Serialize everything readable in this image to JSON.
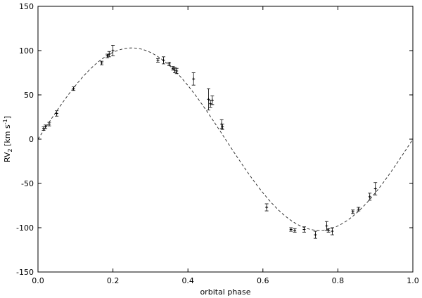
{
  "chart_data": {
    "type": "scatter",
    "xlabel": "orbital phase",
    "ylabel": {
      "base": "RV",
      "sub": "2",
      "unit_open": " [km s",
      "sup": "-1",
      "unit_close": "]"
    },
    "xlim": [
      0.0,
      1.0
    ],
    "ylim": [
      -150,
      150
    ],
    "x_ticks": [
      0.0,
      0.2,
      0.4,
      0.6,
      0.8,
      1.0
    ],
    "x_tick_labels": [
      "0.0",
      "0.2",
      "0.4",
      "0.6",
      "0.8",
      "1.0"
    ],
    "y_ticks": [
      -150,
      -100,
      -50,
      0,
      50,
      100,
      150
    ],
    "y_tick_labels": [
      "-150",
      "-100",
      "-50",
      "0",
      "50",
      "100",
      "150"
    ],
    "grid": false,
    "fit_curve": {
      "style": "dashed",
      "model": "sine",
      "offset": 0,
      "amplitude": 103,
      "period": 1.0
    },
    "points": [
      {
        "x": 0.015,
        "y": 12,
        "err": 2
      },
      {
        "x": 0.02,
        "y": 14,
        "err": 2
      },
      {
        "x": 0.03,
        "y": 17,
        "err": 2
      },
      {
        "x": 0.05,
        "y": 29,
        "err": 3
      },
      {
        "x": 0.095,
        "y": 57,
        "err": 2
      },
      {
        "x": 0.17,
        "y": 86,
        "err": 2
      },
      {
        "x": 0.185,
        "y": 94,
        "err": 2
      },
      {
        "x": 0.19,
        "y": 96,
        "err": 3
      },
      {
        "x": 0.2,
        "y": 100,
        "err": 6
      },
      {
        "x": 0.32,
        "y": 89,
        "err": 2
      },
      {
        "x": 0.335,
        "y": 89,
        "err": 4
      },
      {
        "x": 0.35,
        "y": 85,
        "err": 2
      },
      {
        "x": 0.36,
        "y": 80,
        "err": 2
      },
      {
        "x": 0.365,
        "y": 78,
        "err": 3
      },
      {
        "x": 0.37,
        "y": 77,
        "err": 3
      },
      {
        "x": 0.415,
        "y": 68,
        "err": 7
      },
      {
        "x": 0.455,
        "y": 45,
        "err": 12
      },
      {
        "x": 0.46,
        "y": 40,
        "err": 4
      },
      {
        "x": 0.465,
        "y": 44,
        "err": 5
      },
      {
        "x": 0.49,
        "y": 17,
        "err": 5
      },
      {
        "x": 0.492,
        "y": 14,
        "err": 3
      },
      {
        "x": 0.61,
        "y": -77,
        "err": 4
      },
      {
        "x": 0.675,
        "y": -102,
        "err": 2
      },
      {
        "x": 0.685,
        "y": -103,
        "err": 2
      },
      {
        "x": 0.71,
        "y": -102,
        "err": 3
      },
      {
        "x": 0.74,
        "y": -108,
        "err": 4
      },
      {
        "x": 0.77,
        "y": -98,
        "err": 5
      },
      {
        "x": 0.775,
        "y": -103,
        "err": 2
      },
      {
        "x": 0.785,
        "y": -104,
        "err": 4
      },
      {
        "x": 0.84,
        "y": -82,
        "err": 2
      },
      {
        "x": 0.855,
        "y": -79,
        "err": 2
      },
      {
        "x": 0.885,
        "y": -65,
        "err": 4
      },
      {
        "x": 0.9,
        "y": -56,
        "err": 7
      }
    ]
  }
}
